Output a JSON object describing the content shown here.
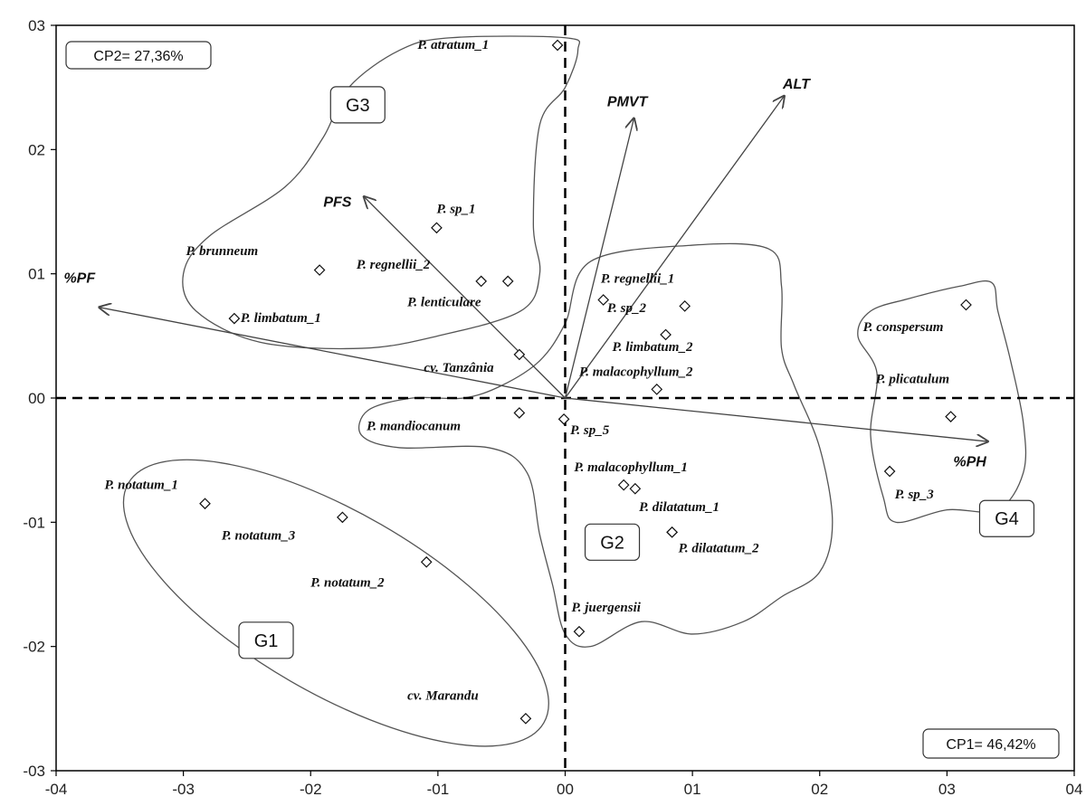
{
  "chart_data": {
    "type": "scatter",
    "title": "",
    "xlabel": "",
    "ylabel": "",
    "xlim": [
      -0.4,
      0.4
    ],
    "ylim": [
      -0.3,
      0.3
    ],
    "x_ticks": [
      -0.4,
      -0.3,
      -0.2,
      -0.1,
      0.0,
      0.1,
      0.2,
      0.3,
      0.4
    ],
    "x_tick_labels": [
      "-04",
      "-03",
      "-02",
      "-01",
      "00",
      "01",
      "02",
      "03",
      "04"
    ],
    "y_ticks": [
      0.3,
      0.2,
      0.1,
      0.0,
      -0.1,
      -0.2,
      -0.3
    ],
    "y_tick_labels": [
      "03",
      "02",
      "01",
      "00",
      "-01",
      "-02",
      "-03"
    ],
    "grid": false,
    "axis_lines": "dashed lines through origin",
    "variance_labels": {
      "cp2": "CP2= 27,36%",
      "cp1": "CP1= 46,42%"
    },
    "points": [
      {
        "label": "P. atratum_1",
        "x": -0.006,
        "y": 0.284
      },
      {
        "label": "P. sp_1",
        "x": -0.101,
        "y": 0.137
      },
      {
        "label": "P. brunneum",
        "x": -0.193,
        "y": 0.103
      },
      {
        "label": "P. regnellii_2",
        "x": -0.066,
        "y": 0.094
      },
      {
        "label": "P. lenticulare",
        "x": -0.045,
        "y": 0.094
      },
      {
        "label": "P. limbatum_1",
        "x": -0.26,
        "y": 0.064
      },
      {
        "label": "cv. Tanzânia",
        "x": -0.036,
        "y": 0.035
      },
      {
        "label": "P. mandiocanum",
        "x": -0.036,
        "y": -0.012
      },
      {
        "label": "P. sp_5",
        "x": -0.001,
        "y": -0.017
      },
      {
        "label": "P. regnellii_1",
        "x": 0.094,
        "y": 0.074
      },
      {
        "label": "P. sp_2",
        "x": 0.03,
        "y": 0.079
      },
      {
        "label": "P. limbatum_2",
        "x": 0.079,
        "y": 0.051
      },
      {
        "label": "P. malacophyllum_2",
        "x": 0.072,
        "y": 0.007
      },
      {
        "label": "P. malacophyllum_1",
        "x": 0.046,
        "y": -0.07
      },
      {
        "label": "P. malacophyllum_1b",
        "x": 0.055,
        "y": -0.073
      },
      {
        "label": "P. dilatatum_1",
        "x": 0.084,
        "y": -0.108
      },
      {
        "label": "P. dilatatum_2",
        "x": 0.084,
        "y": -0.108
      },
      {
        "label": "P. juergensii",
        "x": 0.011,
        "y": -0.188
      },
      {
        "label": "P. conspersum",
        "x": 0.315,
        "y": 0.075
      },
      {
        "label": "P. plicatulum",
        "x": 0.303,
        "y": -0.015
      },
      {
        "label": "P. sp_3",
        "x": 0.255,
        "y": -0.059
      },
      {
        "label": "P. notatum_1",
        "x": -0.283,
        "y": -0.085
      },
      {
        "label": "P. notatum_3",
        "x": -0.175,
        "y": -0.096
      },
      {
        "label": "P. notatum_2",
        "x": -0.109,
        "y": -0.132
      },
      {
        "label": "cv. Marandu",
        "x": -0.031,
        "y": -0.258
      }
    ],
    "point_labels": [
      {
        "text": "P. atratum_1",
        "x": -0.116,
        "y": 0.281
      },
      {
        "text": "P. sp_1",
        "x": -0.101,
        "y": 0.149
      },
      {
        "text": "P. brunneum",
        "x": -0.298,
        "y": 0.115
      },
      {
        "text": "P. regnellii_2",
        "x": -0.164,
        "y": 0.104
      },
      {
        "text": "P. lenticulare",
        "x": -0.124,
        "y": 0.074
      },
      {
        "text": "P. limbatum_1",
        "x": -0.255,
        "y": 0.061
      },
      {
        "text": "cv. Tanzânia",
        "x": -0.111,
        "y": 0.021
      },
      {
        "text": "P. mandiocanum",
        "x": -0.156,
        "y": -0.026
      },
      {
        "text": "P. sp_5",
        "x": 0.004,
        "y": -0.029
      },
      {
        "text": "P. regnellii_1",
        "x": 0.028,
        "y": 0.093
      },
      {
        "text": "P. sp_2",
        "x": 0.033,
        "y": 0.069
      },
      {
        "text": "P. limbatum_2",
        "x": 0.037,
        "y": 0.038
      },
      {
        "text": "P. malacophyllum_2",
        "x": 0.011,
        "y": 0.018
      },
      {
        "text": "P. malacophyllum_1",
        "x": 0.007,
        "y": -0.059
      },
      {
        "text": "P. dilatatum_1",
        "x": 0.058,
        "y": -0.091
      },
      {
        "text": "P. dilatatum_2",
        "x": 0.089,
        "y": -0.124
      },
      {
        "text": "P. juergensii",
        "x": 0.005,
        "y": -0.172
      },
      {
        "text": "P. conspersum",
        "x": 0.234,
        "y": 0.054
      },
      {
        "text": "P. plicatulum",
        "x": 0.244,
        "y": 0.012
      },
      {
        "text": "P. sp_3",
        "x": 0.259,
        "y": -0.081
      },
      {
        "text": "P. notatum_1",
        "x": -0.362,
        "y": -0.073
      },
      {
        "text": "P. notatum_3",
        "x": -0.27,
        "y": -0.114
      },
      {
        "text": "P. notatum_2",
        "x": -0.2,
        "y": -0.152
      },
      {
        "text": "cv. Marandu",
        "x": -0.124,
        "y": -0.243
      }
    ],
    "vectors": [
      {
        "label": "%PF",
        "x": -0.366,
        "y": 0.073,
        "lx": -0.394,
        "ly": 0.093
      },
      {
        "label": "PFS",
        "x": -0.158,
        "y": 0.162,
        "lx": -0.19,
        "ly": 0.154
      },
      {
        "label": "PMVT",
        "x": 0.054,
        "y": 0.225,
        "lx": 0.033,
        "ly": 0.235
      },
      {
        "label": "ALT",
        "x": 0.172,
        "y": 0.243,
        "lx": 0.171,
        "ly": 0.249
      },
      {
        "label": "%PH",
        "x": 0.332,
        "y": -0.035,
        "lx": 0.305,
        "ly": -0.055
      }
    ],
    "groups": [
      {
        "name": "G3",
        "lx": -0.163,
        "ly": 0.236
      },
      {
        "name": "G2",
        "lx": 0.037,
        "ly": -0.116
      },
      {
        "name": "G1",
        "lx": -0.235,
        "ly": -0.195
      },
      {
        "name": "G4",
        "lx": 0.347,
        "ly": -0.097
      }
    ],
    "group_outlines": [
      {
        "name": "G3",
        "points": [
          [
            -0.09,
            0.29
          ],
          [
            0.0,
            0.29
          ],
          [
            0.01,
            0.28
          ],
          [
            0.0,
            0.25
          ],
          [
            -0.02,
            0.22
          ],
          [
            -0.025,
            0.14
          ],
          [
            -0.02,
            0.1
          ],
          [
            -0.035,
            0.07
          ],
          [
            -0.1,
            0.05
          ],
          [
            -0.16,
            0.04
          ],
          [
            -0.24,
            0.045
          ],
          [
            -0.29,
            0.07
          ],
          [
            -0.3,
            0.1
          ],
          [
            -0.28,
            0.13
          ],
          [
            -0.22,
            0.17
          ],
          [
            -0.19,
            0.21
          ],
          [
            -0.17,
            0.25
          ],
          [
            -0.13,
            0.28
          ]
        ]
      },
      {
        "name": "G2",
        "points": [
          [
            0.02,
            0.11
          ],
          [
            0.1,
            0.123
          ],
          [
            0.16,
            0.12
          ],
          [
            0.17,
            0.09
          ],
          [
            0.17,
            0.04
          ],
          [
            0.18,
            0.01
          ],
          [
            0.2,
            -0.04
          ],
          [
            0.21,
            -0.1
          ],
          [
            0.2,
            -0.14
          ],
          [
            0.17,
            -0.16
          ],
          [
            0.14,
            -0.18
          ],
          [
            0.1,
            -0.19
          ],
          [
            0.06,
            -0.18
          ],
          [
            0.02,
            -0.2
          ],
          [
            0.0,
            -0.19
          ],
          [
            -0.01,
            -0.15
          ],
          [
            -0.02,
            -0.11
          ],
          [
            -0.03,
            -0.06
          ],
          [
            -0.06,
            -0.04
          ],
          [
            -0.13,
            -0.04
          ],
          [
            -0.16,
            -0.03
          ],
          [
            -0.155,
            -0.01
          ],
          [
            -0.12,
            0.0
          ],
          [
            -0.08,
            0.0
          ],
          [
            -0.05,
            0.01
          ],
          [
            -0.02,
            0.03
          ],
          [
            0.0,
            0.06
          ]
        ]
      }
    ]
  }
}
